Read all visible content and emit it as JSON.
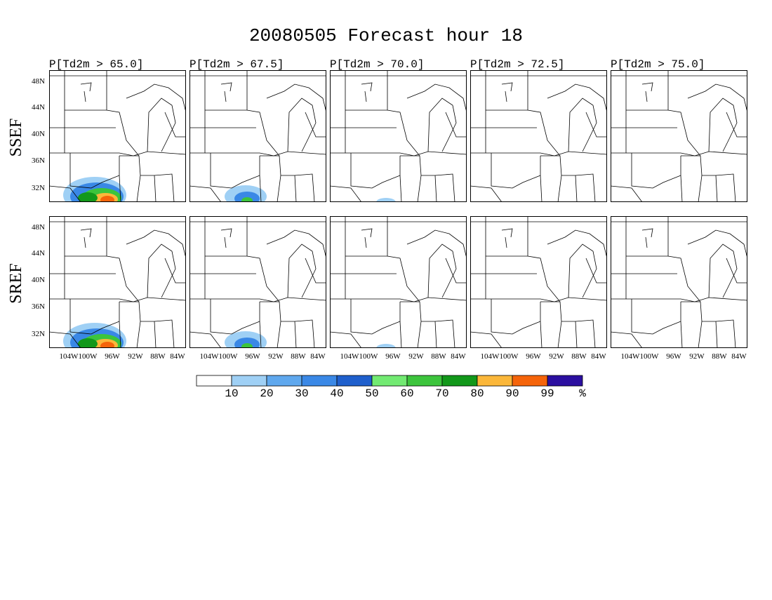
{
  "title": "20080505 Forecast hour 18",
  "columns": [
    "P[Td2m > 65.0]",
    "P[Td2m > 67.5]",
    "P[Td2m > 70.0]",
    "P[Td2m > 72.5]",
    "P[Td2m > 75.0]"
  ],
  "rows": [
    "SSEF",
    "SREF"
  ],
  "lat_labels": [
    "48N",
    "44N",
    "40N",
    "36N",
    "32N"
  ],
  "lon_labels": [
    "104W",
    "100W",
    "96W",
    "92W",
    "88W",
    "84W"
  ],
  "colorbar": {
    "colors": [
      "#ffffff",
      "#9fd0f5",
      "#5fa8ee",
      "#3a88e6",
      "#1f5fcc",
      "#72ea72",
      "#3cc43c",
      "#12981a",
      "#fbb73a",
      "#f5640a",
      "#2b0fa0"
    ],
    "labels": [
      "10",
      "20",
      "30",
      "40",
      "50",
      "60",
      "70",
      "80",
      "90",
      "99"
    ],
    "unit": "%"
  }
}
